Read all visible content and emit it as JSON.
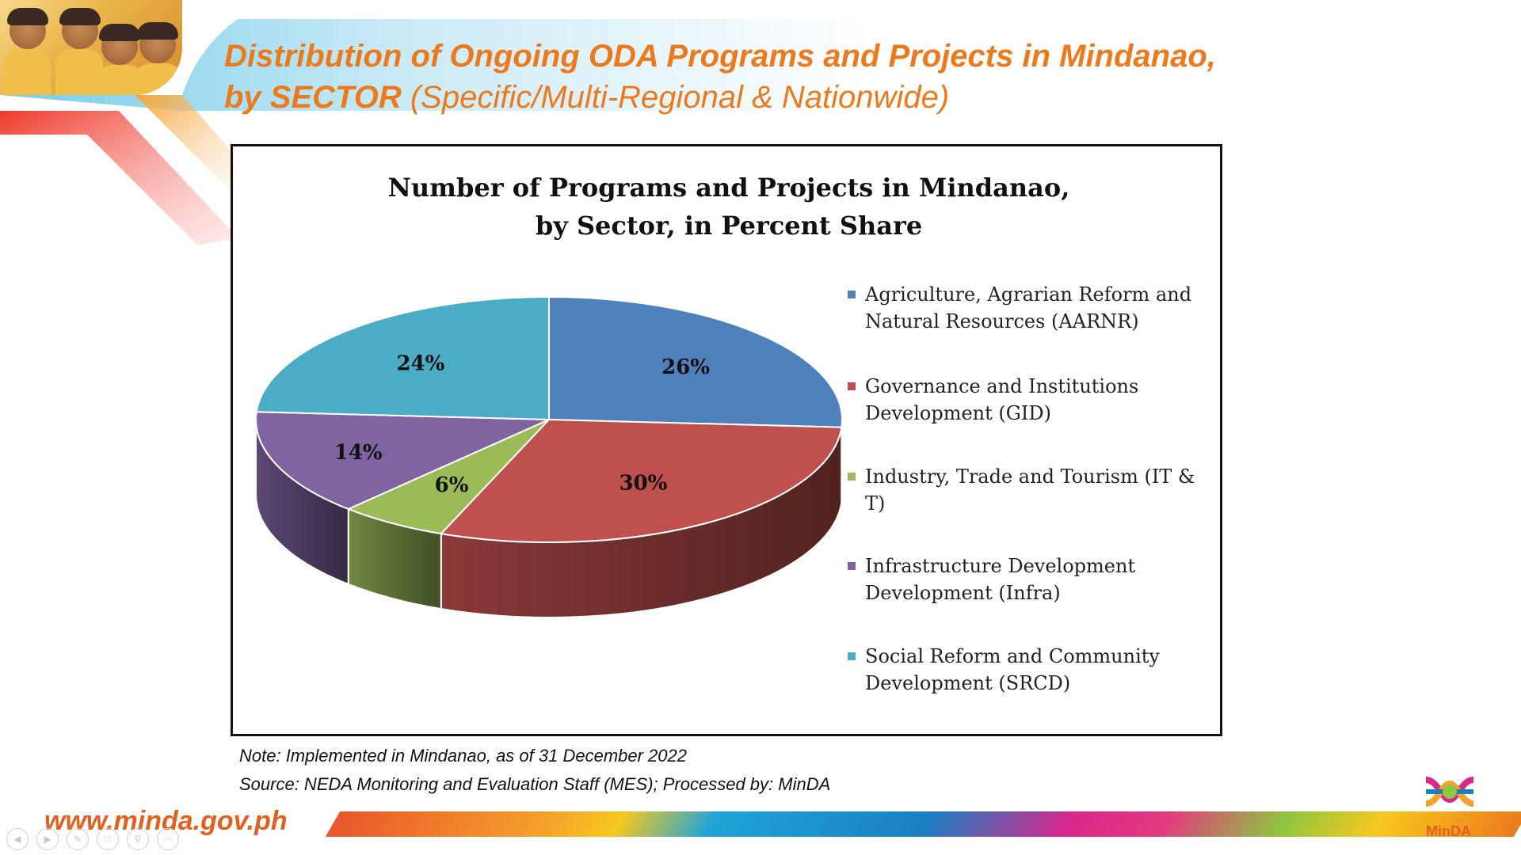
{
  "slide": {
    "title_line1": "Distribution of Ongoing ODA Programs and Projects in Mindanao,",
    "title_line2_bold": "by SECTOR",
    "title_line2_rest": " (Specific/Multi-Regional & Nationwide)",
    "note": "Note: Implemented in Mindanao, as of 31 December 2022",
    "source": "Source: NEDA Monitoring and Evaluation Staff (MES);  Processed by: MinDA",
    "website": "www.minda.gov.ph",
    "logo_text": "MinDA"
  },
  "colors": {
    "title_orange": "#ec7a1c",
    "aarnr": "#4f81bd",
    "gid": "#c0504d",
    "itt": "#9bbb59",
    "infra": "#8064a2",
    "srcd": "#4bacc6"
  },
  "controls": [
    "prev-icon",
    "next-icon",
    "pen-icon",
    "slides-icon",
    "zoom-icon",
    "more-icon"
  ],
  "chart_data": {
    "type": "pie",
    "title": "Number of Programs and Projects in Mindanao,\nby Sector, in Percent Share",
    "categories": [
      "Agriculture, Agrarian Reform and\nNatural Resources (AARNR)",
      "Governance and Institutions\nDevelopment (GID)",
      "Industry, Trade and Tourism (IT & T)",
      "Infrastructure Development\nDevelopment (Infra)",
      "Social Reform and Community\nDevelopment (SRCD)"
    ],
    "values": [
      26,
      30,
      6,
      14,
      24
    ],
    "labels": [
      "26%",
      "30%",
      "6%",
      "14%",
      "24%"
    ],
    "colors": [
      "#4f81bd",
      "#c0504d",
      "#9bbb59",
      "#8064a2",
      "#4bacc6"
    ],
    "legend_position": "right",
    "style": "3d"
  }
}
